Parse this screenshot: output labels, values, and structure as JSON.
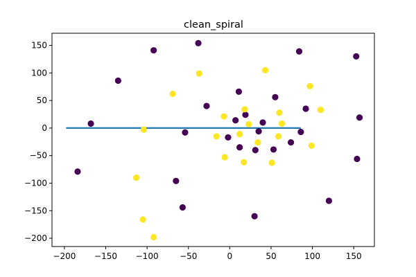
{
  "chart_data": {
    "type": "scatter",
    "title": "clean_spiral",
    "xlabel": "",
    "ylabel": "",
    "xlim": [
      -215,
      175
    ],
    "ylim": [
      -215,
      172
    ],
    "x_ticks": [
      -200,
      -150,
      -100,
      -50,
      0,
      50,
      100,
      150
    ],
    "y_ticks": [
      -200,
      -150,
      -100,
      -50,
      0,
      50,
      100,
      150
    ],
    "grid": false,
    "colors": {
      "class_0": "#440154",
      "class_1": "#fde725",
      "line": "#1f77b4",
      "axes": "#000000"
    },
    "line": {
      "x": [
        -197,
        85
      ],
      "y": [
        0,
        0
      ]
    },
    "series": [
      {
        "class": 0,
        "points": [
          [
            -92,
            141
          ],
          [
            -38,
            154
          ],
          [
            84,
            139
          ],
          [
            153,
            130
          ],
          [
            -135,
            86
          ],
          [
            11,
            66
          ],
          [
            55,
            56
          ],
          [
            92,
            35
          ],
          [
            -28,
            40
          ],
          [
            7,
            14
          ],
          [
            19,
            24
          ],
          [
            40,
            10
          ],
          [
            157,
            19
          ],
          [
            -168,
            8
          ],
          [
            35,
            -6
          ],
          [
            86,
            -7
          ],
          [
            -54,
            -8
          ],
          [
            -2,
            -17
          ],
          [
            74,
            -26
          ],
          [
            12,
            -35
          ],
          [
            53,
            -39
          ],
          [
            31,
            -40
          ],
          [
            154,
            -56
          ],
          [
            -184,
            -79
          ],
          [
            -65,
            -96
          ],
          [
            120,
            -132
          ],
          [
            -57,
            -144
          ],
          [
            30,
            -160
          ]
        ]
      },
      {
        "class": 1,
        "points": [
          [
            43,
            105
          ],
          [
            -37,
            99
          ],
          [
            97,
            76
          ],
          [
            -69,
            62
          ],
          [
            18,
            34
          ],
          [
            110,
            33
          ],
          [
            60,
            28
          ],
          [
            -7,
            21
          ],
          [
            23,
            7
          ],
          [
            63,
            8
          ],
          [
            -104,
            -3
          ],
          [
            -16,
            -15
          ],
          [
            12,
            -11
          ],
          [
            59,
            -15
          ],
          [
            34,
            -26
          ],
          [
            99,
            -32
          ],
          [
            -6,
            -53
          ],
          [
            17,
            -62
          ],
          [
            51,
            -63
          ],
          [
            -113,
            -90
          ],
          [
            -105,
            -166
          ],
          [
            -92,
            -198
          ]
        ]
      }
    ]
  }
}
